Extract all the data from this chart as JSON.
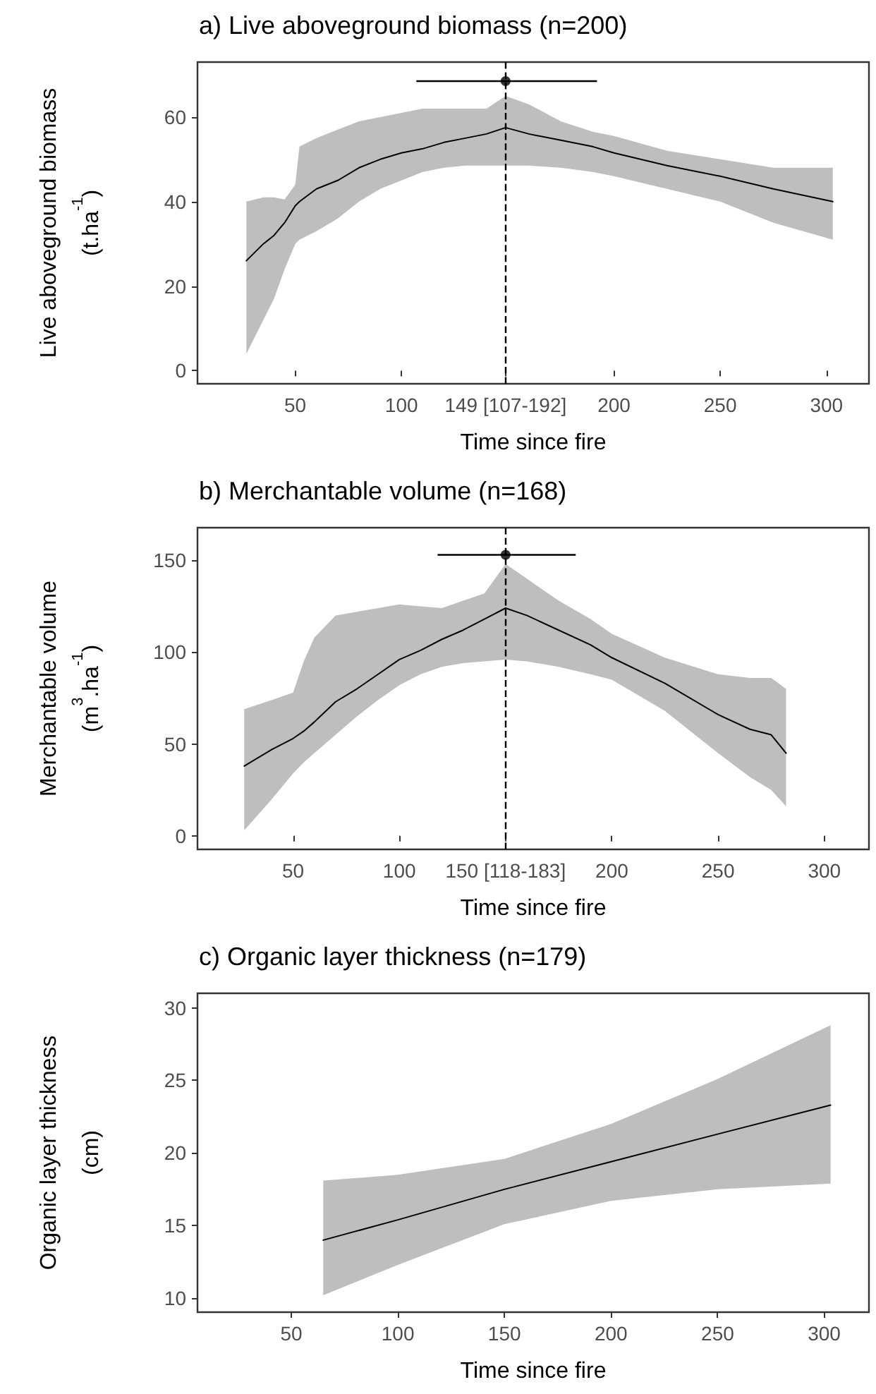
{
  "chart_data": [
    {
      "type": "line",
      "title": "a) Live aboveground biomass (n=200)",
      "xlabel": "Time since fire",
      "ylabel": "Live aboveground biomass\n(t.ha$^{-1}$)",
      "xlim": [
        4,
        320
      ],
      "ylim": [
        -3.1,
        73
      ],
      "xticks": [
        50,
        100,
        {
          "value": 149,
          "label": "149 [107-192]"
        },
        200,
        250,
        300
      ],
      "yticks": [
        0,
        20,
        40,
        60
      ],
      "grid": false,
      "series": [
        {
          "type": "line",
          "color": "#000000",
          "marker": "none",
          "x": [
            27,
            35,
            40,
            45,
            50,
            52,
            60,
            70,
            80,
            90,
            100,
            110,
            120,
            130,
            140,
            149,
            160,
            175,
            190,
            200,
            225,
            250,
            275,
            303
          ],
          "values": [
            26,
            30,
            32,
            35,
            39,
            40,
            43,
            45,
            48,
            50,
            51.5,
            52.5,
            54,
            55,
            56,
            57.5,
            56,
            54.5,
            53,
            51.5,
            48.5,
            46,
            43,
            40
          ],
          "upper": [
            40,
            41,
            41,
            40.5,
            44,
            53,
            55,
            57,
            59,
            60,
            61,
            62,
            62,
            62,
            62,
            65,
            63,
            59,
            56.5,
            55.5,
            52,
            50,
            48,
            48
          ],
          "lower": [
            4,
            12,
            17,
            24,
            30,
            31,
            33,
            36,
            40,
            43,
            45,
            47,
            48,
            48.5,
            48.5,
            48.5,
            48.5,
            48,
            47,
            46,
            43,
            40,
            35,
            31
          ]
        },
        {
          "type": "scatter",
          "color": "#000000",
          "marker": "circle",
          "x": [
            149
          ],
          "values": [
            68.5
          ],
          "xerrors": [
            [
              107,
              192
            ]
          ]
        }
      ],
      "ref_lines": [
        {
          "axis": "x",
          "value": 149,
          "label": null,
          "color": "#000000",
          "line_style": "dashed"
        }
      ]
    },
    {
      "type": "line",
      "title": "b) Merchantable volume (n=168)",
      "xlabel": "Time since fire",
      "ylabel": "Merchantable volume\n(m$^{3}$.ha$^{-1}$)",
      "xlim": [
        5,
        321
      ],
      "ylim": [
        -7.4,
        167.8
      ],
      "xticks": [
        50,
        100,
        {
          "value": 150,
          "label": "150 [118-183]"
        },
        200,
        250,
        300
      ],
      "yticks": [
        0,
        50,
        100,
        150
      ],
      "grid": false,
      "series": [
        {
          "type": "line",
          "color": "#000000",
          "marker": "none",
          "x": [
            27,
            40,
            50,
            55,
            60,
            70,
            80,
            90,
            100,
            110,
            120,
            130,
            140,
            150,
            160,
            175,
            190,
            200,
            225,
            250,
            265,
            275,
            282
          ],
          "values": [
            38,
            47,
            53,
            57,
            62,
            73,
            80,
            88,
            96,
            101,
            107,
            112,
            118,
            124,
            120,
            112,
            104,
            97,
            83,
            66,
            58,
            55,
            45
          ],
          "upper": [
            69,
            74,
            78,
            95,
            108,
            120,
            122,
            124,
            126,
            125,
            124,
            128,
            132,
            148,
            140,
            128,
            118,
            110,
            97,
            88,
            86,
            86,
            80
          ],
          "lower": [
            3,
            20,
            34,
            40,
            45,
            55,
            65,
            74,
            82,
            88,
            92,
            94,
            95,
            96,
            95,
            92,
            88,
            85,
            68,
            45,
            32,
            25,
            16
          ]
        },
        {
          "type": "scatter",
          "color": "#000000",
          "marker": "circle",
          "x": [
            150
          ],
          "values": [
            153
          ],
          "xerrors": [
            [
              118,
              183
            ]
          ]
        }
      ],
      "ref_lines": [
        {
          "axis": "x",
          "value": 150,
          "label": null,
          "color": "#000000",
          "line_style": "dashed"
        }
      ]
    },
    {
      "type": "line",
      "title": "c) Organic layer thickness (n=179)",
      "xlabel": "Time since fire",
      "ylabel": "Organic layer thickness\n(cm)",
      "xlim": [
        6,
        321
      ],
      "ylim": [
        9.04,
        31
      ],
      "xticks": [
        50,
        100,
        150,
        200,
        250,
        300
      ],
      "yticks": [
        10,
        15,
        20,
        25,
        30
      ],
      "grid": false,
      "series": [
        {
          "type": "line",
          "color": "#000000",
          "marker": "none",
          "x": [
            65,
            100,
            150,
            200,
            250,
            303
          ],
          "values": [
            14,
            15.4,
            17.5,
            19.4,
            21.3,
            23.3
          ],
          "upper": [
            18.1,
            18.5,
            19.6,
            22,
            25.1,
            28.8
          ],
          "lower": [
            10.2,
            12.3,
            15.1,
            16.7,
            17.5,
            17.9
          ]
        }
      ]
    }
  ]
}
